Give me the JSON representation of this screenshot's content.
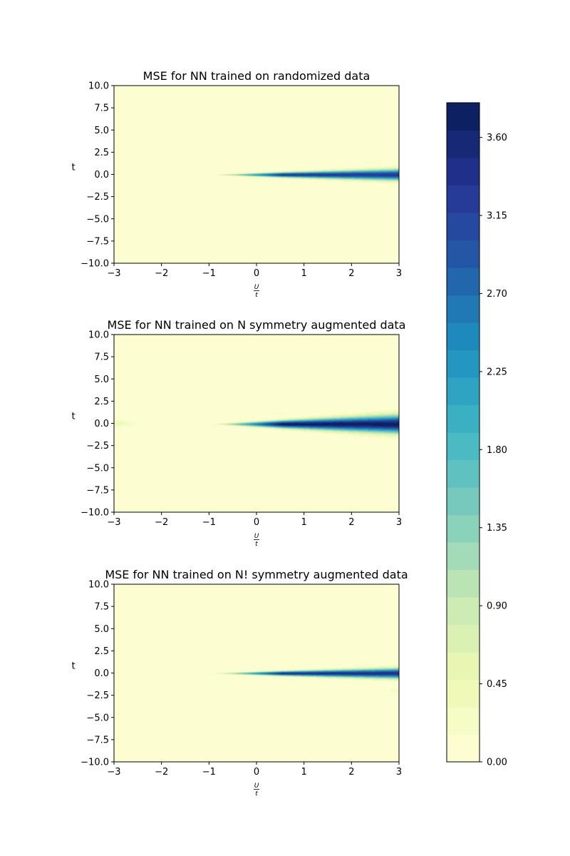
{
  "chart_data": {
    "type": "heatmap",
    "subplots": [
      {
        "title": "MSE for NN trained on randomized data",
        "xlabel_num": "U",
        "xlabel_den": "t",
        "ylabel": "t",
        "xlim": [
          -3,
          3
        ],
        "ylim": [
          -10,
          10
        ],
        "xticks": [
          "−3",
          "−2",
          "−1",
          "0",
          "1",
          "2",
          "3"
        ],
        "yticks": [
          "10.0",
          "7.5",
          "5.0",
          "2.5",
          "0.0",
          "−2.5",
          "−5.0",
          "−7.5",
          "−10.0"
        ],
        "feature": {
          "x_start": -1.0,
          "center_y": -0.05,
          "core_intensity": 3.3,
          "spread_at_max": 0.55,
          "secondary_blob": null
        }
      },
      {
        "title": "MSE for NN trained on N symmetry augmented data",
        "xlabel_num": "U",
        "xlabel_den": "t",
        "ylabel": "t",
        "xlim": [
          -3,
          3
        ],
        "ylim": [
          -10,
          10
        ],
        "xticks": [
          "−3",
          "−2",
          "−1",
          "0",
          "1",
          "2",
          "3"
        ],
        "yticks": [
          "10.0",
          "7.5",
          "5.0",
          "2.5",
          "0.0",
          "−2.5",
          "−5.0",
          "−7.5",
          "−10.0"
        ],
        "feature": {
          "x_start": -1.0,
          "center_y": -0.1,
          "core_intensity": 3.75,
          "spread_at_max": 0.9,
          "secondary_blob": {
            "x_from": -3,
            "x_to": -2.3,
            "y": 0.0,
            "intensity": 0.5
          }
        }
      },
      {
        "title": "MSE for NN trained on N! symmetry augmented data",
        "xlabel_num": "U",
        "xlabel_den": "t",
        "ylabel": "t",
        "xlim": [
          -3,
          3
        ],
        "ylim": [
          -10,
          10
        ],
        "xticks": [
          "−3",
          "−2",
          "−1",
          "0",
          "1",
          "2",
          "3"
        ],
        "yticks": [
          "10.0",
          "7.5",
          "5.0",
          "2.5",
          "0.0",
          "−2.5",
          "−5.0",
          "−7.5",
          "−10.0"
        ],
        "feature": {
          "x_start": -1.0,
          "center_y": -0.05,
          "core_intensity": 3.4,
          "spread_at_max": 0.5,
          "secondary_blob": {
            "x_from": 2.6,
            "x_to": 3.0,
            "y": -2.0,
            "intensity": 0.3
          }
        }
      }
    ],
    "colorbar": {
      "min": 0.0,
      "max": 3.8,
      "levels": 24,
      "tick_labels": [
        "0.00",
        "0.45",
        "0.90",
        "1.35",
        "1.80",
        "2.25",
        "2.70",
        "3.15",
        "3.60"
      ],
      "tick_values": [
        0.0,
        0.45,
        0.9,
        1.35,
        1.8,
        2.25,
        2.7,
        3.15,
        3.6
      ],
      "colormap": "YlGnBu",
      "colors": [
        "#ffffd9",
        "#edf8b1",
        "#c7e9b4",
        "#7fcdbb",
        "#41b6c4",
        "#1d91c0",
        "#225ea8",
        "#253494",
        "#081d58"
      ]
    }
  }
}
